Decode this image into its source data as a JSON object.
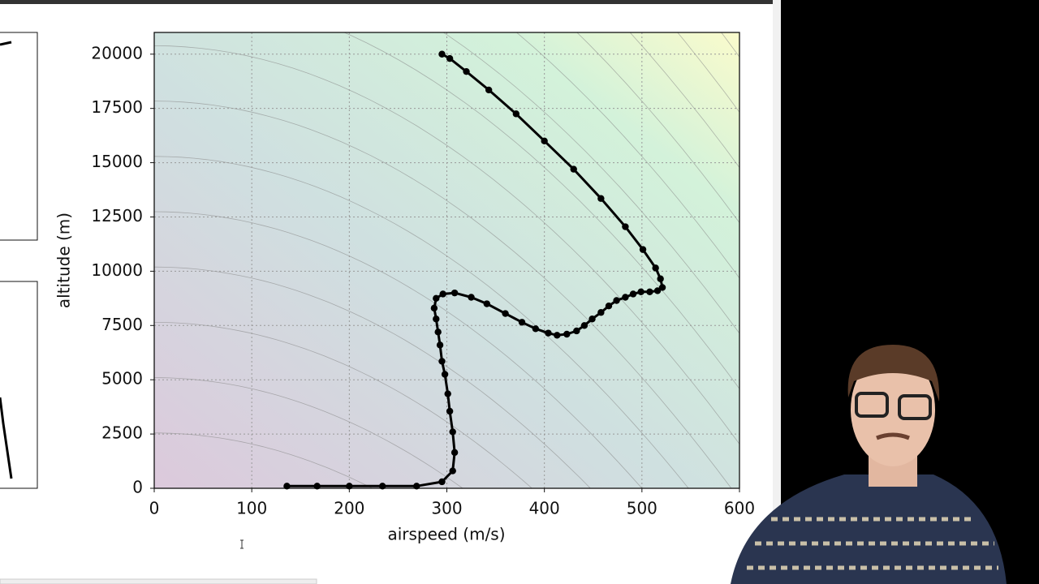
{
  "chart_data": {
    "type": "line",
    "xlabel": "airspeed (m/s)",
    "ylabel": "altitude (m)",
    "color": "#000000",
    "grid": true,
    "xlim": [
      0,
      600
    ],
    "ylim": [
      0,
      21000
    ],
    "xticks": [
      0,
      100,
      200,
      300,
      400,
      500,
      600
    ],
    "yticks": [
      0,
      2500,
      5000,
      7500,
      10000,
      12500,
      15000,
      17500,
      20000
    ],
    "x": [
      295,
      303,
      320,
      343,
      371,
      400,
      430,
      458,
      483,
      501,
      514,
      519,
      521,
      516,
      508,
      499,
      491,
      483,
      474,
      466,
      458,
      449,
      441,
      433,
      423,
      413,
      404,
      391,
      377,
      360,
      341,
      325,
      308,
      296,
      289,
      287,
      289,
      291,
      293,
      295,
      298,
      301,
      303,
      306,
      308,
      306,
      295,
      269,
      234,
      200,
      167,
      136
    ],
    "values": [
      20000,
      19800,
      19200,
      18350,
      17250,
      16000,
      14700,
      13350,
      12050,
      11000,
      10150,
      9650,
      9250,
      9100,
      9050,
      9050,
      8950,
      8800,
      8650,
      8400,
      8100,
      7800,
      7500,
      7250,
      7100,
      7050,
      7150,
      7350,
      7650,
      8050,
      8500,
      8800,
      9000,
      8950,
      8750,
      8300,
      7800,
      7200,
      6600,
      5850,
      5250,
      4350,
      3550,
      2600,
      1650,
      800,
      300,
      100,
      100,
      100,
      100,
      100
    ]
  }
}
